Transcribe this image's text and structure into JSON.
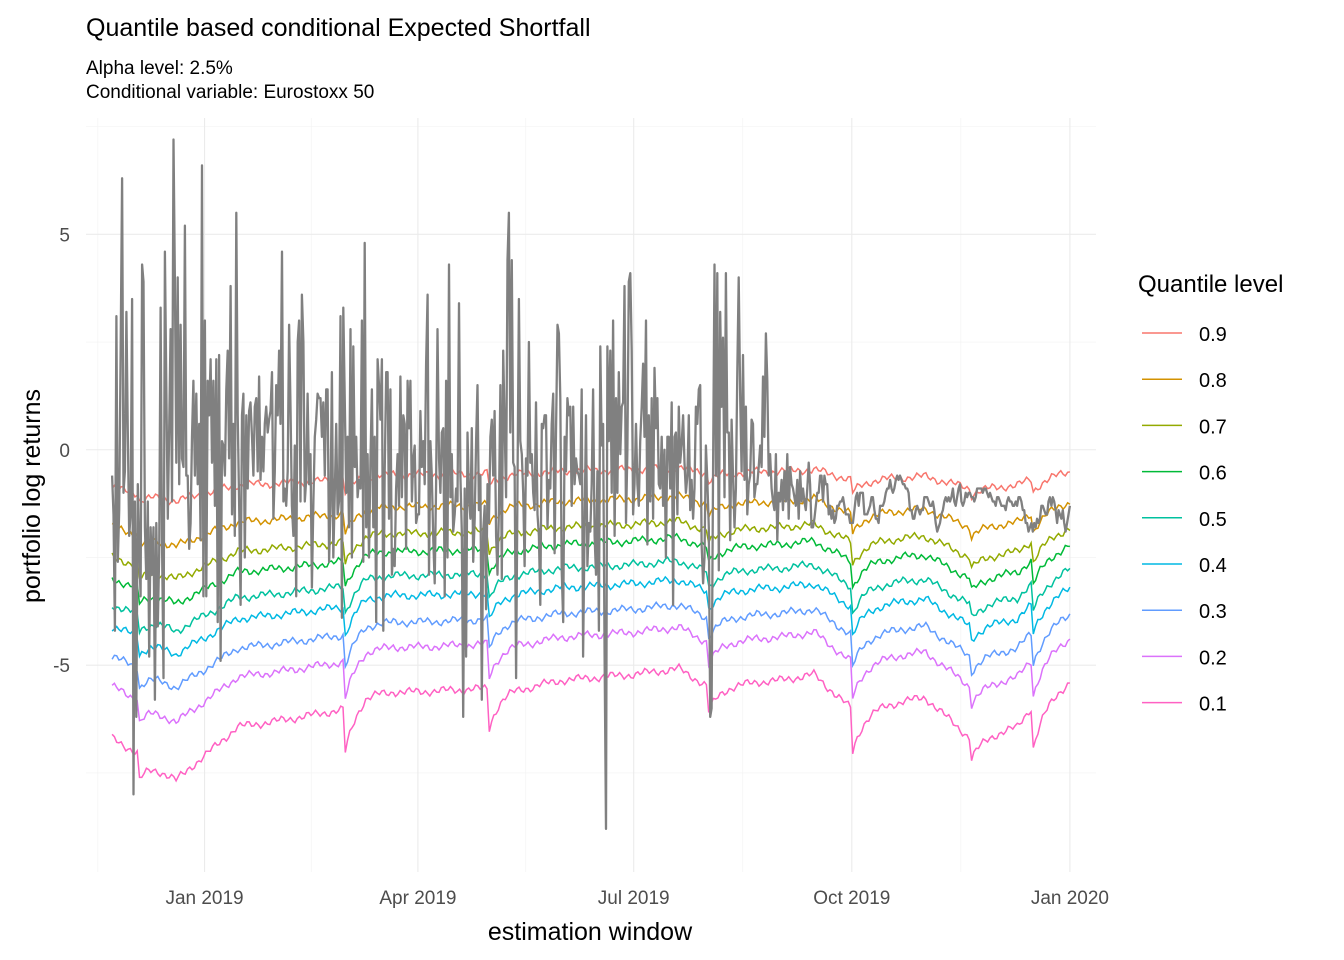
{
  "chart_data": {
    "type": "line",
    "title": "Quantile based conditional Expected Shortfall",
    "subtitle_lines": [
      "Alpha level: 2.5%",
      "Conditional variable: Eurostoxx 50"
    ],
    "xlabel": "estimation window",
    "ylabel": "portfolio log returns",
    "x_range": [
      "2018-11-23",
      "2020-01-01"
    ],
    "xlim": [
      "2018-11-12",
      "2020-01-12"
    ],
    "ylim": [
      -9.8,
      7.7
    ],
    "y_ticks": [
      5,
      0,
      -5
    ],
    "y_tick_labels": [
      "5",
      "0",
      "-5"
    ],
    "x_ticks": [
      {
        "date": "2019-01-01",
        "label": "Jan 2019"
      },
      {
        "date": "2019-04-01",
        "label": "Apr 2019"
      },
      {
        "date": "2019-07-01",
        "label": "Jul 2019"
      },
      {
        "date": "2019-10-01",
        "label": "Oct 2019"
      },
      {
        "date": "2020-01-01",
        "label": "Jan 2020"
      }
    ],
    "grid": true,
    "legend": {
      "title": "Quantile level",
      "placement": "right",
      "entries": [
        {
          "label": "0.9",
          "color": "#F8766D"
        },
        {
          "label": "0.8",
          "color": "#D39200"
        },
        {
          "label": "0.7",
          "color": "#93AA00"
        },
        {
          "label": "0.6",
          "color": "#00BA38"
        },
        {
          "label": "0.5",
          "color": "#00C19F"
        },
        {
          "label": "0.4",
          "color": "#00B9E3"
        },
        {
          "label": "0.3",
          "color": "#619CFF"
        },
        {
          "label": "0.2",
          "color": "#DB72FB"
        },
        {
          "label": "0.1",
          "color": "#FF61C3"
        }
      ]
    },
    "returns_series": {
      "name": "portfolio log returns",
      "color": "#808080",
      "values": [
        -0.6,
        -1.5,
        -4.2,
        3.1,
        -2.6,
        -1.4,
        2.2,
        6.3,
        -1.0,
        -0.5,
        3.2,
        0.4,
        -2.0,
        -1.5,
        3.5,
        -8.0,
        -1.2,
        -6.2,
        -0.8,
        -2.3,
        -3.4,
        4.3,
        3.9,
        -1.8,
        -3.0,
        -1.2,
        -4.8,
        -1.8,
        -2.9,
        -1.8,
        -5.8,
        -1.7,
        -4.1,
        -2.4,
        3.3,
        -2.1,
        -5.3,
        4.6,
        1.5,
        -1.6,
        0.5,
        2.8,
        -1.2,
        7.2,
        3.9,
        -0.3,
        4.0,
        -0.8,
        2.9,
        -0.2,
        -0.4,
        5.2,
        -0.6,
        -0.6,
        -2.3,
        -1.7,
        0.3,
        1.6,
        -0.6,
        1.3,
        -0.8,
        0.6,
        -2.1,
        6.6,
        -3.4,
        3.0,
        -3.4,
        1.6,
        0.8,
        2.1,
        -0.3,
        1.6,
        -1.3,
        2.1,
        -4.0,
        2.2,
        -4.9,
        0.2,
        0.1,
        -0.6,
        1.4,
        2.3,
        -0.2,
        3.8,
        -1.5,
        0.6,
        -2.0,
        5.5,
        0.8,
        -1.2,
        -3.6,
        0.8,
        1.3,
        -2.5,
        0.8,
        -0.9,
        0.9,
        1.1,
        0.3,
        -0.6,
        1.0,
        1.2,
        -0.5,
        1.7,
        -0.7,
        0.3,
        -0.5,
        0.6,
        1.0,
        0.4,
        0.7,
        0.9,
        1.8,
        -1.6,
        -0.5,
        1.5,
        0.8,
        2.3,
        0.6,
        4.6,
        -1.2,
        -0.9,
        -1.3,
        -0.5,
        2.9,
        1.0,
        -1.3,
        -2.0,
        0.1,
        -3.4,
        2.5,
        3.0,
        -1.2,
        3.6,
        2.5,
        -1.2,
        -0.7,
        1.3,
        -0.8,
        -0.1,
        -3.2,
        -1.2,
        0.3,
        0.7,
        1.3,
        1.2,
        1.2,
        0.3,
        1.1,
        -0.6,
        1.4,
        1.4,
        -2.6,
        -1.3,
        1.8,
        -2.5,
        -1.0,
        0.6,
        -1.5,
        -1.2,
        3.1,
        -3.9,
        3.3,
        1.1,
        -1.0,
        0.3,
        -1.8,
        2.8,
        -2.5,
        2.4,
        -0.4,
        0.3,
        -1.1,
        -0.7,
        -0.9,
        3.0,
        -2.6,
        4.8,
        -1.8,
        -0.1,
        -2.5,
        -0.2,
        1.4,
        -1.8,
        0.3,
        -4.0,
        2.1,
        1.5,
        0.7,
        2.1,
        -4.2,
        -0.5,
        1.8,
        1.8,
        -1.6,
        1.4,
        -2.9,
        -2.3,
        -2.7,
        -0.9,
        -0.1,
        -1.3,
        1.7,
        -1.1,
        0.8,
        0.6,
        -2.3,
        1.6,
        0.5,
        1.6,
        -1.2,
        -0.2,
        0.1,
        -1.7,
        -1.5,
        -1.5,
        0.9,
        -0.4,
        0.2,
        -0.8,
        2.0,
        3.6,
        -2.9,
        0.2,
        -0.6,
        -2.1,
        -3.1,
        -0.8,
        2.8,
        -0.2,
        -1.0,
        0.4,
        0.5,
        -3.4,
        1.6,
        -2.5,
        4.3,
        -1.1,
        -0.1,
        -1.9,
        -1.5,
        -0.9,
        -1.2,
        3.4,
        -0.6,
        -1.9,
        -6.2,
        -0.9,
        -4.8,
        0.4,
        -1.1,
        -1.6,
        0.5,
        -2.6,
        -1.6,
        0.2,
        1.5,
        -1.4,
        -0.6,
        -5.8,
        -1.9,
        -1.3,
        -3.7,
        -0.8,
        -1.7,
        0.3,
        0.7,
        -0.6,
        0.9,
        -2.0,
        -2.9,
        -1.4,
        1.5,
        -3.0,
        2.3,
        0.6,
        -1.1,
        4.4,
        5.5,
        0.4,
        4.4,
        -0.3,
        -0.4,
        -5.3,
        -0.8,
        3.5,
        0.2,
        -0.1,
        -1.0,
        -2.7,
        -0.2,
        -0.6,
        2.5,
        -0.3,
        -0.1,
        -1.0,
        -1.4,
        1.1,
        -1.5,
        -2.0,
        -3.6,
        0.6,
        0.5,
        0.8,
        0.8,
        -1.8,
        -0.7,
        -0.9,
        0.6,
        1.3,
        -2.4,
        0.4,
        2.9,
        2.7,
        1.2,
        -2.8,
        -4.0,
        0.3,
        -0.5,
        1.2,
        0.8,
        1.0,
        -1.3,
        1.0,
        -0.8,
        -0.2,
        -0.5,
        -0.6,
        -0.8,
        1.4,
        -4.8,
        -1.7,
        0.8,
        -2.7,
        -1.7,
        -1.9,
        -0.8,
        1.4,
        -2.0,
        -2.9,
        -0.5,
        -4.2,
        2.4,
        0.1,
        0.6,
        -4.8,
        -8.8,
        2.4,
        0.2,
        2.3,
        -1.0,
        3.0,
        -2.0,
        1.2,
        -1.0,
        1.8,
        -0.1,
        1.0,
        1.1,
        3.8,
        -1.7,
        0.0,
        3.9,
        4.1,
        2.3,
        -1.5,
        -0.8,
        0.6,
        -0.8,
        -1.3,
        0.2,
        1.0,
        2.0,
        0.3,
        3.0,
        -2.2,
        0.8,
        -1.2,
        1.2,
        -1.6,
        1.9,
        0.5,
        1.2,
        -0.8,
        -0.9,
        0.3,
        -1.3,
        0.0,
        -2.5,
        0.3,
        0.3,
        -0.9,
        1.1,
        -3.6,
        0.3,
        0.4,
        -1.5,
        1.0,
        -0.3,
        0.1,
        0.8,
        -0.3,
        -1.0,
        -0.6,
        0.8,
        -1.4,
        -0.7,
        -1.6,
        -0.9,
        1.0,
        0.6,
        1.4,
        1.5,
        -2.2,
        -3.1,
        -2.5,
        0.1,
        -0.7,
        -1.8,
        -6.2,
        -6.0,
        -0.7,
        4.3,
        -0.6,
        4.1,
        -2.8,
        3.2,
        1.0,
        2.6,
        -1.1,
        4.1,
        0.4,
        0.4,
        -2.1,
        0.7,
        -0.6,
        -1.8,
        -0.9,
        1.8,
        4.0,
        1.2,
        -0.5,
        2.2,
        -0.7,
        1.0,
        -1.5,
        -0.8,
        -0.6,
        0.7,
        0.6,
        -1.1,
        -0.8,
        -0.8,
        -0.4,
        0.1,
        -0.4,
        1.7,
        0.3,
        2.7,
        1.6,
        -0.6,
        -0.1,
        -0.9,
        -1.2,
        -1.4,
        -0.1,
        -2.1,
        -1.0,
        -1.2,
        -0.7,
        -1.4,
        -0.5,
        -1.2,
        -0.1,
        -1.6,
        -0.4,
        -0.8,
        -0.9,
        -1.1,
        -1.3,
        -0.7,
        -1.6,
        -0.5,
        -1.2,
        -0.9,
        -1.2,
        -1.4,
        -0.9,
        -0.3,
        -0.8,
        -1.8,
        -1.8,
        -1.6,
        -1.3,
        -1.0,
        -1.0,
        -0.6,
        -0.6,
        -1.2,
        -0.6,
        -0.8,
        -0.8,
        -1.5,
        -1.3,
        -1.6,
        -1.4,
        -1.7,
        -1.6,
        -1.3,
        -1.3,
        -1.2,
        -1.2,
        -1.1,
        -1.3,
        -1.5,
        -1.5,
        -1.5,
        -1.7,
        -1.7,
        -1.7,
        -1.4,
        -1.1,
        -1.0,
        -1.3,
        -1.0,
        -1.0,
        -1.0,
        -1.5,
        -1.5,
        -1.5,
        -1.4,
        -1.3,
        -1.1,
        -1.1,
        -1.4,
        -1.6,
        -1.6,
        -1.7,
        -1.3,
        -1.3,
        -1.3,
        -1.2,
        -1.0,
        -0.9,
        -0.9,
        -0.7,
        -0.9,
        -1.0,
        -0.9,
        -0.7,
        -0.6,
        -0.7,
        -0.6,
        -0.7,
        -0.8,
        -0.8,
        -0.9,
        -0.9,
        -1.0,
        -1.4,
        -1.4,
        -1.6,
        -1.6,
        -1.4,
        -1.3,
        -1.4,
        -1.5,
        -1.4,
        -1.4,
        -1.1,
        -1.1,
        -1.1,
        -1.2,
        -1.3,
        -1.3,
        -1.2,
        -1.4,
        -1.7,
        -1.9,
        -1.8,
        -1.7,
        -1.5,
        -1.4,
        -1.2,
        -1.1,
        -1.2,
        -1.1,
        -1.2,
        -1.1,
        -0.9,
        -1.2,
        -1.3,
        -1.1,
        -0.9,
        -0.8,
        -1.2,
        -1.3,
        -1.2,
        -1.0,
        -1.1,
        -1.0,
        -1.0,
        -1.1,
        -1.1,
        -1.2,
        -1.1,
        -0.9,
        -0.9,
        -0.9,
        -0.9,
        -1.0,
        -0.9,
        -0.9,
        -1.0,
        -1.1,
        -1.0,
        -1.1,
        -1.2,
        -1.2,
        -1.3,
        -1.1,
        -1.1,
        -1.2,
        -1.3,
        -1.3,
        -1.3,
        -1.4,
        -1.2,
        -1.1,
        -1.2,
        -1.2,
        -1.3,
        -1.3,
        -1.2,
        -1.3,
        -1.1,
        -1.1,
        -1.2,
        -1.4,
        -1.4,
        -1.7,
        -1.7,
        -1.9,
        -1.8,
        -1.7,
        -1.9,
        -1.7,
        -1.8,
        -1.6,
        -1.7,
        -1.6,
        -1.3,
        -1.3,
        -1.4,
        -1.5,
        -1.5,
        -1.2,
        -1.1,
        -1.3,
        -1.1,
        -1.2,
        -1.4,
        -1.7,
        -1.4,
        -1.5,
        -1.6,
        -1.4,
        -1.7,
        -1.9,
        -1.7,
        -1.5,
        -1.3
      ]
    },
    "quantile_profile": {
      "note": "Each quantile curve = level + seasonal shape (in log-return units). Approximate values read from figure.",
      "levels": {
        "0.9": -0.9,
        "0.8": -1.8,
        "0.7": -2.5,
        "0.6": -3.0,
        "0.5": -3.6,
        "0.4": -4.1,
        "0.3": -4.8,
        "0.2": -5.5,
        "0.1": -6.7
      },
      "spread": {
        "0.9": 0.4,
        "0.8": 0.6,
        "0.7": 0.7,
        "0.6": 0.8,
        "0.5": 0.85,
        "0.4": 0.9,
        "0.3": 1.0,
        "0.2": 1.15,
        "0.1": 1.35
      },
      "shape_points": [
        {
          "date": "2018-11-23",
          "v": 0.0
        },
        {
          "date": "2018-12-10",
          "v": -0.4
        },
        {
          "date": "2018-12-20",
          "v": -0.7
        },
        {
          "date": "2019-01-01",
          "v": -0.3
        },
        {
          "date": "2019-01-15",
          "v": 0.2
        },
        {
          "date": "2019-02-01",
          "v": 0.3
        },
        {
          "date": "2019-03-01",
          "v": 0.5
        },
        {
          "date": "2019-03-10",
          "v": 0.8
        },
        {
          "date": "2019-04-01",
          "v": 0.8
        },
        {
          "date": "2019-05-20",
          "v": 0.9
        },
        {
          "date": "2019-06-01",
          "v": 1.0
        },
        {
          "date": "2019-07-01",
          "v": 1.1
        },
        {
          "date": "2019-07-20",
          "v": 1.2
        },
        {
          "date": "2019-08-01",
          "v": 0.9
        },
        {
          "date": "2019-09-01",
          "v": 1.0
        },
        {
          "date": "2019-09-15",
          "v": 1.1
        },
        {
          "date": "2019-10-01",
          "v": 0.5
        },
        {
          "date": "2019-11-01",
          "v": 0.7
        },
        {
          "date": "2019-11-20",
          "v": 0.0
        },
        {
          "date": "2019-12-10",
          "v": 0.2
        },
        {
          "date": "2019-12-15",
          "v": 0.5
        },
        {
          "date": "2020-01-01",
          "v": 1.0
        }
      ],
      "dips": [
        {
          "date": "2018-12-04",
          "depth": 0.5
        },
        {
          "date": "2019-03-01",
          "depth": 0.8
        },
        {
          "date": "2019-05-01",
          "depth": 0.7
        },
        {
          "date": "2019-08-01",
          "depth": 0.5
        },
        {
          "date": "2019-10-01",
          "depth": 0.8
        },
        {
          "date": "2019-11-20",
          "depth": 0.4
        },
        {
          "date": "2019-12-16",
          "depth": 0.8
        }
      ]
    }
  }
}
